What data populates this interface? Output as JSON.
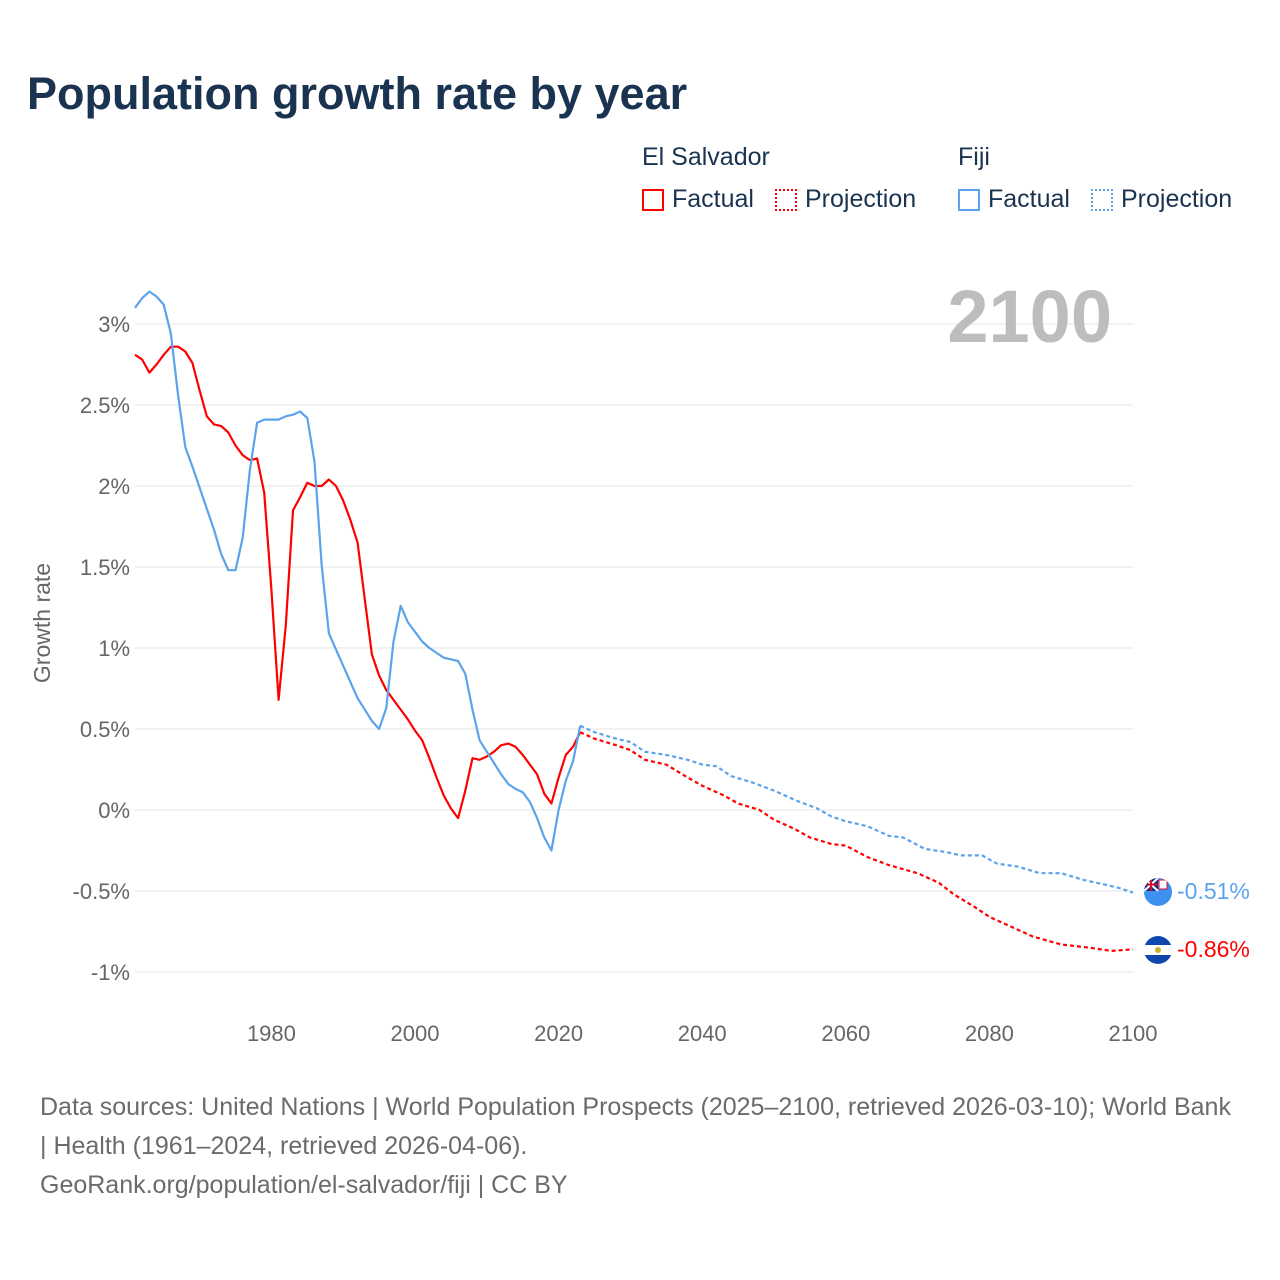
{
  "chart_data": {
    "type": "line",
    "title": "Population growth rate by year",
    "ylabel": "Growth rate",
    "xlabel": "",
    "xlim": [
      1961,
      2100
    ],
    "ylim": [
      -1.2,
      3.3
    ],
    "x_ticks": [
      1980,
      2000,
      2020,
      2040,
      2060,
      2080,
      2100
    ],
    "x_tick_labels": [
      "1980",
      "2000",
      "2020",
      "2040",
      "2060",
      "2080",
      "2100"
    ],
    "y_ticks": [
      3,
      2.5,
      2,
      1.5,
      1,
      0.5,
      0,
      -0.5,
      -1
    ],
    "y_tick_labels": [
      "3%",
      "2.5%",
      "2%",
      "1.5%",
      "1%",
      "0.5%",
      "0%",
      "-0.5%",
      "-1%"
    ],
    "grid": true,
    "year_overlay": "2100",
    "legend": {
      "placement": "top-right",
      "groups": [
        {
          "name": "El Salvador",
          "factual": "Factual",
          "projection": "Projection"
        },
        {
          "name": "Fiji",
          "factual": "Factual",
          "projection": "Projection"
        }
      ]
    },
    "series": [
      {
        "name": "El Salvador",
        "color": "#ff0000",
        "end_label": "-0.86%",
        "factual": {
          "x": [
            1961,
            1962,
            1963,
            1964,
            1965,
            1966,
            1967,
            1968,
            1969,
            1970,
            1971,
            1972,
            1973,
            1974,
            1975,
            1976,
            1977,
            1978,
            1979,
            1980,
            1981,
            1982,
            1983,
            1984,
            1985,
            1986,
            1987,
            1988,
            1989,
            1990,
            1991,
            1992,
            1993,
            1994,
            1995,
            1996,
            1997,
            1998,
            1999,
            2000,
            2001,
            2002,
            2003,
            2004,
            2005,
            2006,
            2007,
            2008,
            2009,
            2010,
            2011,
            2012,
            2013,
            2014,
            2015,
            2016,
            2017,
            2018,
            2019,
            2020,
            2021,
            2022,
            2023
          ],
          "y": [
            2.81,
            2.78,
            2.7,
            2.75,
            2.81,
            2.86,
            2.86,
            2.83,
            2.76,
            2.59,
            2.43,
            2.38,
            2.37,
            2.33,
            2.25,
            2.19,
            2.16,
            2.17,
            1.96,
            1.36,
            0.68,
            1.14,
            1.85,
            1.93,
            2.02,
            2.0,
            2.0,
            2.04,
            2.0,
            1.91,
            1.79,
            1.65,
            1.3,
            0.96,
            0.83,
            0.74,
            0.68,
            0.62,
            0.56,
            0.49,
            0.43,
            0.32,
            0.2,
            0.09,
            0.01,
            -0.05,
            0.12,
            0.32,
            0.31,
            0.33,
            0.36,
            0.4,
            0.41,
            0.39,
            0.34,
            0.28,
            0.22,
            0.1,
            0.04,
            0.2,
            0.34,
            0.39,
            0.48
          ]
        },
        "projection": {
          "x": [
            2023,
            2025,
            2028,
            2030,
            2032,
            2035,
            2038,
            2040,
            2043,
            2045,
            2048,
            2050,
            2053,
            2055,
            2058,
            2060,
            2063,
            2066,
            2070,
            2073,
            2075,
            2078,
            2080,
            2083,
            2086,
            2090,
            2094,
            2097,
            2100
          ],
          "y": [
            0.48,
            0.44,
            0.4,
            0.37,
            0.31,
            0.28,
            0.2,
            0.15,
            0.09,
            0.04,
            0.0,
            -0.06,
            -0.12,
            -0.17,
            -0.21,
            -0.22,
            -0.29,
            -0.34,
            -0.39,
            -0.45,
            -0.52,
            -0.6,
            -0.66,
            -0.72,
            -0.78,
            -0.83,
            -0.85,
            -0.87,
            -0.86
          ]
        }
      },
      {
        "name": "Fiji",
        "color": "#5ba3ea",
        "end_label": "-0.51%",
        "factual": {
          "x": [
            1961,
            1962,
            1963,
            1964,
            1965,
            1966,
            1967,
            1968,
            1969,
            1970,
            1971,
            1972,
            1973,
            1974,
            1975,
            1976,
            1977,
            1978,
            1979,
            1980,
            1981,
            1982,
            1983,
            1984,
            1985,
            1986,
            1987,
            1988,
            1989,
            1990,
            1991,
            1992,
            1993,
            1994,
            1995,
            1996,
            1997,
            1998,
            1999,
            2000,
            2001,
            2002,
            2003,
            2004,
            2005,
            2006,
            2007,
            2008,
            2009,
            2010,
            2011,
            2012,
            2013,
            2014,
            2015,
            2016,
            2017,
            2018,
            2019,
            2020,
            2021,
            2022,
            2023
          ],
          "y": [
            3.1,
            3.16,
            3.2,
            3.17,
            3.12,
            2.94,
            2.56,
            2.24,
            2.12,
            1.99,
            1.86,
            1.73,
            1.58,
            1.48,
            1.48,
            1.68,
            2.1,
            2.39,
            2.41,
            2.41,
            2.41,
            2.43,
            2.44,
            2.46,
            2.42,
            2.15,
            1.51,
            1.09,
            0.99,
            0.89,
            0.79,
            0.69,
            0.62,
            0.55,
            0.5,
            0.63,
            1.04,
            1.26,
            1.16,
            1.1,
            1.04,
            1.0,
            0.97,
            0.94,
            0.93,
            0.92,
            0.84,
            0.62,
            0.43,
            0.36,
            0.29,
            0.22,
            0.16,
            0.13,
            0.11,
            0.05,
            -0.05,
            -0.17,
            -0.25,
            0.0,
            0.18,
            0.3,
            0.52
          ]
        },
        "projection": {
          "x": [
            2023,
            2025,
            2028,
            2030,
            2032,
            2035,
            2038,
            2040,
            2042,
            2044,
            2047,
            2050,
            2053,
            2056,
            2058,
            2060,
            2063,
            2066,
            2068,
            2071,
            2074,
            2076,
            2079,
            2081,
            2084,
            2087,
            2090,
            2093,
            2096,
            2098,
            2100
          ],
          "y": [
            0.52,
            0.48,
            0.44,
            0.42,
            0.36,
            0.34,
            0.31,
            0.28,
            0.27,
            0.21,
            0.17,
            0.12,
            0.06,
            0.01,
            -0.04,
            -0.07,
            -0.1,
            -0.16,
            -0.17,
            -0.24,
            -0.26,
            -0.28,
            -0.28,
            -0.33,
            -0.35,
            -0.39,
            -0.39,
            -0.43,
            -0.46,
            -0.48,
            -0.51
          ]
        }
      }
    ]
  },
  "footer": {
    "sources": "Data sources: United Nations | World Population Prospects (2025–2100, retrieved 2026-03-10); World Bank | Health (1961–2024, retrieved 2026-04-06).",
    "credit": "GeoRank.org/population/el-salvador/fiji | CC BY"
  }
}
